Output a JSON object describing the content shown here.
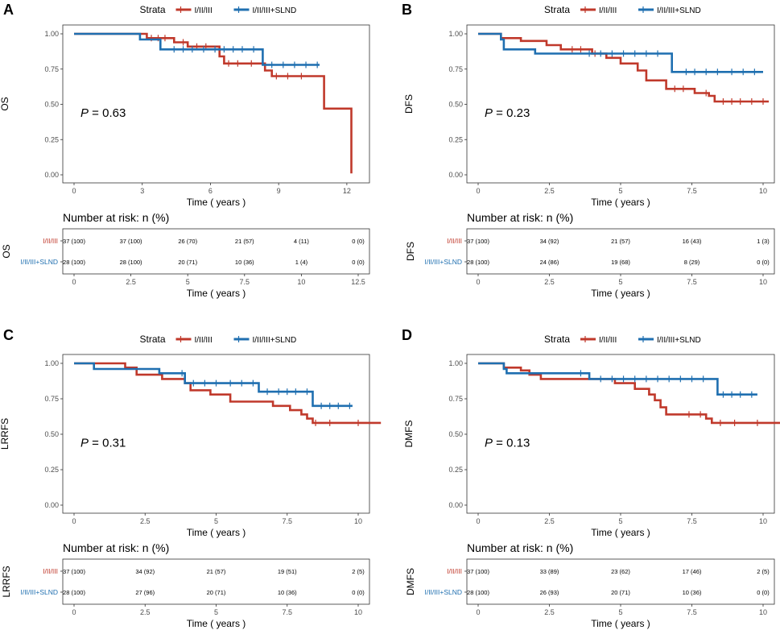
{
  "colors": {
    "red": "#c0392b",
    "blue": "#1f6fb0"
  },
  "legend": {
    "title": "Strata",
    "labels": [
      "I/II/III",
      "I/II/III+SLND"
    ]
  },
  "risk_title": "Number at risk: n (%)",
  "xlabel": "Time ( years )",
  "chart_data": [
    {
      "panel": "A",
      "type": "line",
      "ylabel": "OS",
      "p_label": "P",
      "p_value": "= 0.63",
      "xlim": [
        0,
        12.5
      ],
      "ylim": [
        0,
        1
      ],
      "x_ticks": [
        0,
        3,
        6,
        9,
        12
      ],
      "x_tick_labels": [
        "0",
        "3",
        "6",
        "9",
        "12"
      ],
      "y_ticks": [
        0,
        0.25,
        0.5,
        0.75,
        1.0
      ],
      "y_tick_labels": [
        "0.00",
        "0.25",
        "0.50",
        "0.75",
        "1.00"
      ],
      "series": [
        {
          "name": "I/II/III",
          "color": "red",
          "steps": [
            [
              0,
              1
            ],
            [
              3.2,
              1
            ],
            [
              3.2,
              0.97
            ],
            [
              4.4,
              0.97
            ],
            [
              4.4,
              0.94
            ],
            [
              5.0,
              0.94
            ],
            [
              5.0,
              0.91
            ],
            [
              6.4,
              0.91
            ],
            [
              6.4,
              0.84
            ],
            [
              6.6,
              0.84
            ],
            [
              6.6,
              0.79
            ],
            [
              8.4,
              0.79
            ],
            [
              8.4,
              0.74
            ],
            [
              8.7,
              0.74
            ],
            [
              8.7,
              0.7
            ],
            [
              11.0,
              0.7
            ],
            [
              11.0,
              0.47
            ],
            [
              12.2,
              0.47
            ],
            [
              12.2,
              0.01
            ]
          ],
          "censor": [
            3.4,
            3.7,
            4.0,
            4.8,
            5.4,
            5.8,
            6.8,
            7.2,
            7.8,
            8.9,
            9.4,
            10.0
          ]
        },
        {
          "name": "I/II/III+SLND",
          "color": "blue",
          "steps": [
            [
              0,
              1
            ],
            [
              2.9,
              1
            ],
            [
              2.9,
              0.96
            ],
            [
              3.8,
              0.96
            ],
            [
              3.8,
              0.89
            ],
            [
              8.3,
              0.89
            ],
            [
              8.3,
              0.78
            ],
            [
              10.8,
              0.78
            ]
          ],
          "censor": [
            4.4,
            4.8,
            5.2,
            5.7,
            6.2,
            6.6,
            7.0,
            7.4,
            7.9,
            8.7,
            9.2,
            9.7,
            10.2,
            10.7
          ]
        }
      ],
      "risk": {
        "ylabel": "OS",
        "x_ticks": [
          0,
          2.5,
          5,
          7.5,
          10,
          12.5
        ],
        "x_tick_labels": [
          "0",
          "2.5",
          "5",
          "7.5",
          "10",
          "12.5"
        ],
        "rows": [
          {
            "label": "I/II/III",
            "color": "red",
            "values": [
              "37 (100)",
              "37 (100)",
              "26 (70)",
              "21 (57)",
              "4 (11)",
              "0 (0)"
            ]
          },
          {
            "label": "I/II/III+SLND",
            "color": "blue",
            "values": [
              "28 (100)",
              "28 (100)",
              "20 (71)",
              "10 (36)",
              "1 (4)",
              "0 (0)"
            ]
          }
        ]
      }
    },
    {
      "panel": "B",
      "type": "line",
      "ylabel": "DFS",
      "p_label": "P",
      "p_value": "= 0.23",
      "xlim": [
        0,
        10
      ],
      "ylim": [
        0,
        1
      ],
      "x_ticks": [
        0,
        2.5,
        5,
        7.5,
        10
      ],
      "x_tick_labels": [
        "0",
        "2.5",
        "5",
        "7.5",
        "10"
      ],
      "y_ticks": [
        0,
        0.25,
        0.5,
        0.75,
        1.0
      ],
      "y_tick_labels": [
        "0.00",
        "0.25",
        "0.50",
        "0.75",
        "1.00"
      ],
      "series": [
        {
          "name": "I/II/III",
          "color": "red",
          "steps": [
            [
              0,
              1
            ],
            [
              0.8,
              1
            ],
            [
              0.8,
              0.97
            ],
            [
              1.5,
              0.97
            ],
            [
              1.5,
              0.95
            ],
            [
              2.4,
              0.95
            ],
            [
              2.4,
              0.92
            ],
            [
              2.9,
              0.92
            ],
            [
              2.9,
              0.89
            ],
            [
              4.0,
              0.89
            ],
            [
              4.0,
              0.86
            ],
            [
              4.5,
              0.86
            ],
            [
              4.5,
              0.83
            ],
            [
              5.0,
              0.83
            ],
            [
              5.0,
              0.79
            ],
            [
              5.6,
              0.79
            ],
            [
              5.6,
              0.74
            ],
            [
              5.9,
              0.74
            ],
            [
              5.9,
              0.67
            ],
            [
              6.6,
              0.67
            ],
            [
              6.6,
              0.61
            ],
            [
              7.6,
              0.61
            ],
            [
              7.6,
              0.58
            ],
            [
              8.1,
              0.58
            ],
            [
              8.1,
              0.56
            ],
            [
              8.3,
              0.56
            ],
            [
              8.3,
              0.52
            ],
            [
              10.2,
              0.52
            ]
          ],
          "censor": [
            3.3,
            3.6,
            4.1,
            6.9,
            7.2,
            8.0,
            8.6,
            8.9,
            9.2,
            9.6,
            10.0
          ]
        },
        {
          "name": "I/II/III+SLND",
          "color": "blue",
          "steps": [
            [
              0,
              1
            ],
            [
              0.8,
              1
            ],
            [
              0.8,
              0.96
            ],
            [
              0.9,
              0.96
            ],
            [
              0.9,
              0.89
            ],
            [
              2.0,
              0.89
            ],
            [
              2.0,
              0.86
            ],
            [
              6.8,
              0.86
            ],
            [
              6.8,
              0.73
            ],
            [
              10.0,
              0.73
            ]
          ],
          "censor": [
            3.9,
            4.3,
            4.7,
            5.1,
            5.5,
            5.9,
            6.3,
            7.3,
            7.6,
            8.0,
            8.4,
            8.9,
            9.3,
            9.7
          ]
        }
      ],
      "risk": {
        "ylabel": "DFS",
        "x_ticks": [
          0,
          2.5,
          5,
          7.5,
          10
        ],
        "x_tick_labels": [
          "0",
          "2.5",
          "5",
          "7.5",
          "10"
        ],
        "rows": [
          {
            "label": "I/II/III",
            "color": "red",
            "values": [
              "37 (100)",
              "34 (92)",
              "21 (57)",
              "16 (43)",
              "1 (3)"
            ]
          },
          {
            "label": "I/II/III+SLND",
            "color": "blue",
            "values": [
              "28 (100)",
              "24 (86)",
              "19 (68)",
              "8 (29)",
              "0 (0)"
            ]
          }
        ]
      }
    },
    {
      "panel": "C",
      "type": "line",
      "ylabel": "LRRFS",
      "p_label": "P",
      "p_value": "= 0.31",
      "xlim": [
        0,
        10
      ],
      "ylim": [
        0,
        1
      ],
      "x_ticks": [
        0,
        2.5,
        5,
        7.5,
        10
      ],
      "x_tick_labels": [
        "0",
        "2.5",
        "5",
        "7.5",
        "10"
      ],
      "y_ticks": [
        0,
        0.25,
        0.5,
        0.75,
        1.0
      ],
      "y_tick_labels": [
        "0.00",
        "0.25",
        "0.50",
        "0.75",
        "1.00"
      ],
      "series": [
        {
          "name": "I/II/III",
          "color": "red",
          "steps": [
            [
              0,
              1
            ],
            [
              1.8,
              1
            ],
            [
              1.8,
              0.97
            ],
            [
              2.2,
              0.97
            ],
            [
              2.2,
              0.92
            ],
            [
              3.1,
              0.92
            ],
            [
              3.1,
              0.89
            ],
            [
              3.9,
              0.89
            ],
            [
              3.9,
              0.86
            ],
            [
              4.1,
              0.86
            ],
            [
              4.1,
              0.81
            ],
            [
              4.8,
              0.81
            ],
            [
              4.8,
              0.78
            ],
            [
              5.5,
              0.78
            ],
            [
              5.5,
              0.73
            ],
            [
              7.0,
              0.73
            ],
            [
              7.0,
              0.7
            ],
            [
              7.6,
              0.7
            ],
            [
              7.6,
              0.67
            ],
            [
              8.0,
              0.67
            ],
            [
              8.0,
              0.64
            ],
            [
              8.2,
              0.64
            ],
            [
              8.2,
              0.61
            ],
            [
              8.4,
              0.61
            ],
            [
              8.4,
              0.58
            ],
            [
              10.8,
              0.58
            ]
          ],
          "censor": [
            8.5,
            9.0,
            10.0
          ]
        },
        {
          "name": "I/II/III+SLND",
          "color": "blue",
          "steps": [
            [
              0,
              1
            ],
            [
              0.7,
              1
            ],
            [
              0.7,
              0.96
            ],
            [
              3.0,
              0.96
            ],
            [
              3.0,
              0.93
            ],
            [
              3.9,
              0.93
            ],
            [
              3.9,
              0.86
            ],
            [
              6.5,
              0.86
            ],
            [
              6.5,
              0.8
            ],
            [
              8.4,
              0.8
            ],
            [
              8.4,
              0.7
            ],
            [
              9.8,
              0.7
            ]
          ],
          "censor": [
            3.8,
            4.2,
            4.6,
            5.0,
            5.5,
            5.9,
            6.3,
            6.8,
            7.2,
            7.5,
            7.8,
            8.2,
            8.7,
            9.0,
            9.3,
            9.7
          ]
        }
      ],
      "risk": {
        "ylabel": "LRRFS",
        "x_ticks": [
          0,
          2.5,
          5,
          7.5,
          10
        ],
        "x_tick_labels": [
          "0",
          "2.5",
          "5",
          "7.5",
          "10"
        ],
        "rows": [
          {
            "label": "I/II/III",
            "color": "red",
            "values": [
              "37 (100)",
              "34 (92)",
              "21 (57)",
              "19 (51)",
              "2 (5)"
            ]
          },
          {
            "label": "I/II/III+SLND",
            "color": "blue",
            "values": [
              "28 (100)",
              "27 (96)",
              "20 (71)",
              "10 (36)",
              "0 (0)"
            ]
          }
        ]
      }
    },
    {
      "panel": "D",
      "type": "line",
      "ylabel": "DMFS",
      "p_label": "P",
      "p_value": "= 0.13",
      "xlim": [
        0,
        10
      ],
      "ylim": [
        0,
        1
      ],
      "x_ticks": [
        0,
        2.5,
        5,
        7.5,
        10
      ],
      "x_tick_labels": [
        "0",
        "2.5",
        "5",
        "7.5",
        "10"
      ],
      "y_ticks": [
        0,
        0.25,
        0.5,
        0.75,
        1.0
      ],
      "y_tick_labels": [
        "0.00",
        "0.25",
        "0.50",
        "0.75",
        "1.00"
      ],
      "series": [
        {
          "name": "I/II/III",
          "color": "red",
          "steps": [
            [
              0,
              1
            ],
            [
              0.9,
              1
            ],
            [
              0.9,
              0.97
            ],
            [
              1.5,
              0.97
            ],
            [
              1.5,
              0.95
            ],
            [
              1.8,
              0.95
            ],
            [
              1.8,
              0.92
            ],
            [
              2.2,
              0.92
            ],
            [
              2.2,
              0.89
            ],
            [
              4.8,
              0.89
            ],
            [
              4.8,
              0.86
            ],
            [
              5.5,
              0.86
            ],
            [
              5.5,
              0.82
            ],
            [
              6.0,
              0.82
            ],
            [
              6.0,
              0.78
            ],
            [
              6.2,
              0.78
            ],
            [
              6.2,
              0.74
            ],
            [
              6.4,
              0.74
            ],
            [
              6.4,
              0.69
            ],
            [
              6.6,
              0.69
            ],
            [
              6.6,
              0.64
            ],
            [
              8.0,
              0.64
            ],
            [
              8.0,
              0.61
            ],
            [
              8.2,
              0.61
            ],
            [
              8.2,
              0.58
            ],
            [
              10.8,
              0.58
            ]
          ],
          "censor": [
            7.4,
            7.8,
            8.5,
            9.0,
            9.8
          ]
        },
        {
          "name": "I/II/III+SLND",
          "color": "blue",
          "steps": [
            [
              0,
              1
            ],
            [
              0.9,
              1
            ],
            [
              0.9,
              0.96
            ],
            [
              1.0,
              0.96
            ],
            [
              1.0,
              0.93
            ],
            [
              3.9,
              0.93
            ],
            [
              3.9,
              0.89
            ],
            [
              8.4,
              0.89
            ],
            [
              8.4,
              0.78
            ],
            [
              9.8,
              0.78
            ]
          ],
          "censor": [
            3.6,
            4.3,
            4.7,
            5.1,
            5.5,
            5.9,
            6.3,
            6.7,
            7.1,
            7.5,
            7.9,
            8.6,
            8.9,
            9.2,
            9.6
          ]
        }
      ],
      "risk": {
        "ylabel": "DMFS",
        "x_ticks": [
          0,
          2.5,
          5,
          7.5,
          10
        ],
        "x_tick_labels": [
          "0",
          "2.5",
          "5",
          "7.5",
          "10"
        ],
        "rows": [
          {
            "label": "I/II/III",
            "color": "red",
            "values": [
              "37 (100)",
              "33 (89)",
              "23 (62)",
              "17 (46)",
              "2 (5)"
            ]
          },
          {
            "label": "I/II/III+SLND",
            "color": "blue",
            "values": [
              "28 (100)",
              "26 (93)",
              "20 (71)",
              "10 (36)",
              "0 (0)"
            ]
          }
        ]
      }
    }
  ]
}
